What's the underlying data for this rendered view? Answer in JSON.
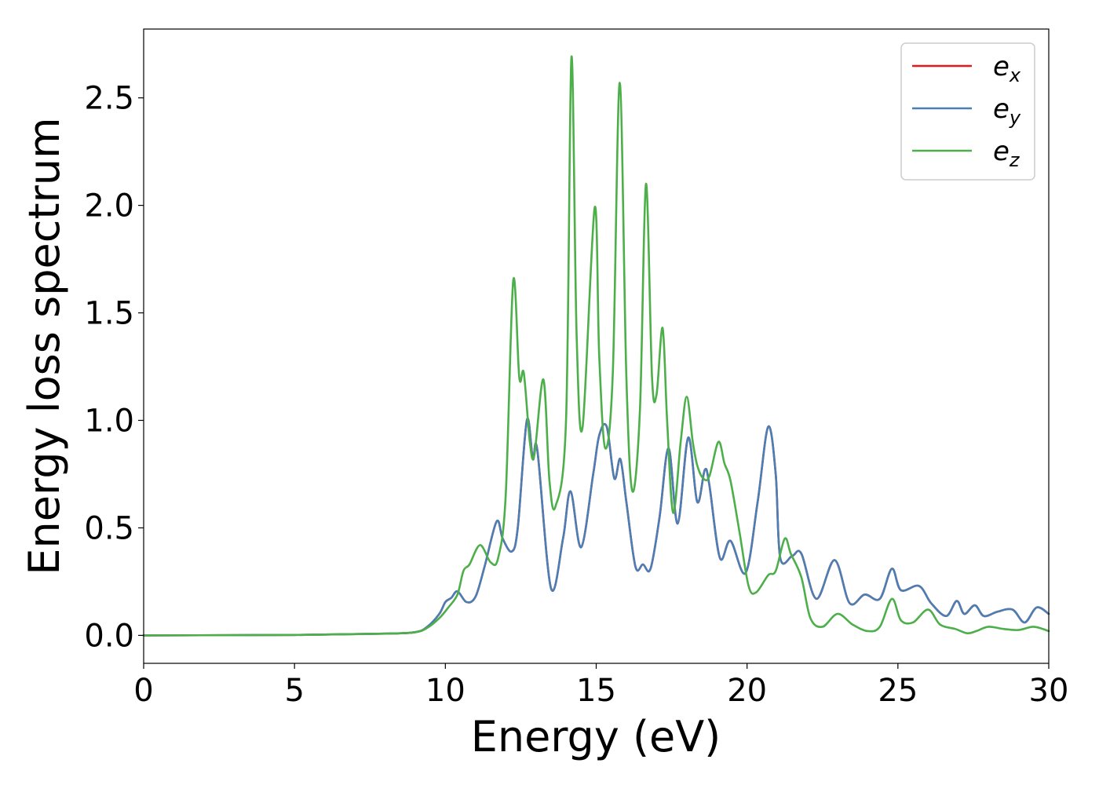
{
  "chart_data": {
    "type": "line",
    "title": "",
    "xlabel": "Energy (eV)",
    "ylabel": "Energy loss spectrum",
    "xlim": [
      0,
      30
    ],
    "ylim": [
      -0.13,
      2.82
    ],
    "xticks": [
      0,
      5,
      10,
      15,
      20,
      25,
      30
    ],
    "xtick_labels": [
      "0",
      "5",
      "10",
      "15",
      "20",
      "25",
      "30"
    ],
    "yticks": [
      0.0,
      0.5,
      1.0,
      1.5,
      2.0,
      2.5
    ],
    "ytick_labels": [
      "0.0",
      "0.5",
      "1.0",
      "1.5",
      "2.0",
      "2.5"
    ],
    "grid": false,
    "legend_position": "top-right",
    "series": [
      {
        "name": "e_x",
        "legend_base": "e",
        "legend_sub": "x",
        "color": "#e41a1c",
        "points": [
          [
            0,
            0.0
          ],
          [
            5,
            0.002
          ],
          [
            8,
            0.008
          ],
          [
            9,
            0.015
          ],
          [
            9.4,
            0.04
          ],
          [
            9.8,
            0.1
          ],
          [
            10.0,
            0.155
          ],
          [
            10.2,
            0.175
          ],
          [
            10.4,
            0.205
          ],
          [
            10.7,
            0.155
          ],
          [
            11.0,
            0.18
          ],
          [
            11.3,
            0.32
          ],
          [
            11.7,
            0.53
          ],
          [
            11.9,
            0.45
          ],
          [
            12.2,
            0.39
          ],
          [
            12.4,
            0.5
          ],
          [
            12.7,
            1.0
          ],
          [
            12.9,
            0.82
          ],
          [
            13.05,
            0.86
          ],
          [
            13.5,
            0.22
          ],
          [
            13.9,
            0.45
          ],
          [
            14.15,
            0.67
          ],
          [
            14.5,
            0.41
          ],
          [
            14.9,
            0.75
          ],
          [
            15.1,
            0.93
          ],
          [
            15.35,
            0.97
          ],
          [
            15.6,
            0.73
          ],
          [
            15.8,
            0.82
          ],
          [
            16.0,
            0.62
          ],
          [
            16.3,
            0.32
          ],
          [
            16.55,
            0.33
          ],
          [
            16.8,
            0.31
          ],
          [
            17.1,
            0.55
          ],
          [
            17.4,
            0.87
          ],
          [
            17.7,
            0.52
          ],
          [
            18.05,
            0.92
          ],
          [
            18.35,
            0.62
          ],
          [
            18.6,
            0.77
          ],
          [
            18.75,
            0.7
          ],
          [
            19.1,
            0.36
          ],
          [
            19.45,
            0.44
          ],
          [
            19.95,
            0.29
          ],
          [
            20.35,
            0.62
          ],
          [
            20.7,
            0.97
          ],
          [
            20.95,
            0.75
          ],
          [
            21.1,
            0.36
          ],
          [
            21.5,
            0.37
          ],
          [
            21.8,
            0.38
          ],
          [
            22.3,
            0.17
          ],
          [
            22.9,
            0.35
          ],
          [
            23.4,
            0.15
          ],
          [
            23.9,
            0.19
          ],
          [
            24.4,
            0.17
          ],
          [
            24.8,
            0.31
          ],
          [
            25.1,
            0.21
          ],
          [
            25.7,
            0.23
          ],
          [
            26.1,
            0.15
          ],
          [
            26.6,
            0.09
          ],
          [
            26.95,
            0.16
          ],
          [
            27.2,
            0.1
          ],
          [
            27.55,
            0.14
          ],
          [
            27.85,
            0.09
          ],
          [
            28.3,
            0.11
          ],
          [
            28.8,
            0.12
          ],
          [
            29.2,
            0.06
          ],
          [
            29.6,
            0.13
          ],
          [
            30,
            0.1
          ]
        ]
      },
      {
        "name": "e_y",
        "legend_base": "e",
        "legend_sub": "y",
        "color": "#4a7fb5",
        "points": [
          [
            0,
            0.0
          ],
          [
            5,
            0.002
          ],
          [
            8,
            0.008
          ],
          [
            9,
            0.015
          ],
          [
            9.4,
            0.04
          ],
          [
            9.8,
            0.1
          ],
          [
            10.0,
            0.155
          ],
          [
            10.2,
            0.175
          ],
          [
            10.4,
            0.205
          ],
          [
            10.7,
            0.155
          ],
          [
            11.0,
            0.18
          ],
          [
            11.3,
            0.32
          ],
          [
            11.7,
            0.53
          ],
          [
            11.9,
            0.45
          ],
          [
            12.2,
            0.39
          ],
          [
            12.4,
            0.5
          ],
          [
            12.7,
            1.0
          ],
          [
            12.9,
            0.82
          ],
          [
            13.05,
            0.86
          ],
          [
            13.5,
            0.22
          ],
          [
            13.9,
            0.45
          ],
          [
            14.15,
            0.67
          ],
          [
            14.5,
            0.41
          ],
          [
            14.9,
            0.75
          ],
          [
            15.1,
            0.93
          ],
          [
            15.35,
            0.97
          ],
          [
            15.6,
            0.73
          ],
          [
            15.8,
            0.82
          ],
          [
            16.0,
            0.62
          ],
          [
            16.3,
            0.32
          ],
          [
            16.55,
            0.33
          ],
          [
            16.8,
            0.31
          ],
          [
            17.1,
            0.55
          ],
          [
            17.4,
            0.87
          ],
          [
            17.7,
            0.52
          ],
          [
            18.05,
            0.92
          ],
          [
            18.35,
            0.62
          ],
          [
            18.6,
            0.77
          ],
          [
            18.75,
            0.7
          ],
          [
            19.1,
            0.36
          ],
          [
            19.45,
            0.44
          ],
          [
            19.95,
            0.29
          ],
          [
            20.35,
            0.62
          ],
          [
            20.7,
            0.97
          ],
          [
            20.95,
            0.75
          ],
          [
            21.1,
            0.36
          ],
          [
            21.5,
            0.37
          ],
          [
            21.8,
            0.38
          ],
          [
            22.3,
            0.17
          ],
          [
            22.9,
            0.35
          ],
          [
            23.4,
            0.15
          ],
          [
            23.9,
            0.19
          ],
          [
            24.4,
            0.17
          ],
          [
            24.8,
            0.31
          ],
          [
            25.1,
            0.21
          ],
          [
            25.7,
            0.23
          ],
          [
            26.1,
            0.15
          ],
          [
            26.6,
            0.09
          ],
          [
            26.95,
            0.16
          ],
          [
            27.2,
            0.1
          ],
          [
            27.55,
            0.14
          ],
          [
            27.85,
            0.09
          ],
          [
            28.3,
            0.11
          ],
          [
            28.8,
            0.12
          ],
          [
            29.2,
            0.06
          ],
          [
            29.6,
            0.13
          ],
          [
            30,
            0.1
          ]
        ]
      },
      {
        "name": "e_z",
        "legend_base": "e",
        "legend_sub": "z",
        "color": "#4daf4a",
        "points": [
          [
            0,
            0.0
          ],
          [
            5,
            0.002
          ],
          [
            8,
            0.008
          ],
          [
            9,
            0.015
          ],
          [
            9.4,
            0.035
          ],
          [
            9.8,
            0.08
          ],
          [
            10.1,
            0.13
          ],
          [
            10.4,
            0.19
          ],
          [
            10.6,
            0.3
          ],
          [
            10.8,
            0.33
          ],
          [
            11.15,
            0.42
          ],
          [
            11.5,
            0.34
          ],
          [
            11.75,
            0.36
          ],
          [
            12.0,
            0.65
          ],
          [
            12.25,
            1.65
          ],
          [
            12.45,
            1.2
          ],
          [
            12.6,
            1.22
          ],
          [
            12.8,
            0.9
          ],
          [
            12.95,
            0.84
          ],
          [
            13.25,
            1.19
          ],
          [
            13.45,
            0.72
          ],
          [
            13.65,
            0.6
          ],
          [
            14.0,
            1.0
          ],
          [
            14.18,
            2.69
          ],
          [
            14.35,
            1.4
          ],
          [
            14.55,
            0.97
          ],
          [
            14.95,
            1.99
          ],
          [
            15.1,
            1.3
          ],
          [
            15.3,
            0.87
          ],
          [
            15.55,
            1.22
          ],
          [
            15.78,
            2.57
          ],
          [
            16.0,
            1.2
          ],
          [
            16.2,
            0.67
          ],
          [
            16.45,
            1.05
          ],
          [
            16.65,
            2.1
          ],
          [
            16.85,
            1.2
          ],
          [
            17.0,
            1.12
          ],
          [
            17.2,
            1.43
          ],
          [
            17.35,
            1.0
          ],
          [
            17.55,
            0.57
          ],
          [
            17.8,
            0.9
          ],
          [
            18.0,
            1.11
          ],
          [
            18.2,
            0.9
          ],
          [
            18.35,
            0.79
          ],
          [
            18.55,
            0.73
          ],
          [
            18.75,
            0.74
          ],
          [
            19.05,
            0.9
          ],
          [
            19.25,
            0.8
          ],
          [
            19.45,
            0.72
          ],
          [
            19.75,
            0.48
          ],
          [
            20.05,
            0.23
          ],
          [
            20.3,
            0.2
          ],
          [
            20.7,
            0.28
          ],
          [
            20.95,
            0.3
          ],
          [
            21.25,
            0.45
          ],
          [
            21.45,
            0.38
          ],
          [
            21.8,
            0.27
          ],
          [
            22.1,
            0.08
          ],
          [
            22.5,
            0.04
          ],
          [
            23.0,
            0.1
          ],
          [
            23.5,
            0.05
          ],
          [
            24.0,
            0.02
          ],
          [
            24.4,
            0.04
          ],
          [
            24.8,
            0.17
          ],
          [
            25.1,
            0.07
          ],
          [
            25.5,
            0.06
          ],
          [
            26.0,
            0.12
          ],
          [
            26.4,
            0.05
          ],
          [
            26.9,
            0.03
          ],
          [
            27.3,
            0.01
          ],
          [
            27.6,
            0.02
          ],
          [
            28.0,
            0.04
          ],
          [
            28.5,
            0.03
          ],
          [
            29.0,
            0.025
          ],
          [
            29.5,
            0.04
          ],
          [
            30,
            0.02
          ]
        ]
      }
    ]
  }
}
